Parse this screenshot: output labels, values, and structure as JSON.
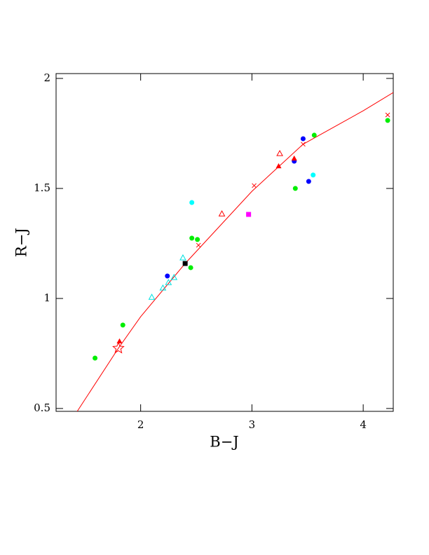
{
  "chart_data": {
    "type": "scatter",
    "x_label": "B−J",
    "y_label": "R−J",
    "xlim": [
      1.24,
      4.27
    ],
    "ylim": [
      0.487,
      2.022
    ],
    "xticks": [
      2,
      3,
      4
    ],
    "yticks": [
      0.5,
      1,
      1.5,
      2
    ],
    "series": [
      {
        "marker": "line",
        "color": "#ff0000",
        "x": [
          1.43,
          1.8,
          2.0,
          2.4,
          3.0,
          3.46,
          4.0,
          4.27
        ],
        "y": [
          0.487,
          0.774,
          0.917,
          1.159,
          1.487,
          1.701,
          1.853,
          1.936
        ]
      },
      {
        "marker": "x",
        "color": "#ff0000",
        "x": [
          2.52,
          3.02,
          3.46,
          4.22
        ],
        "y": [
          1.242,
          1.513,
          1.701,
          1.834
        ]
      },
      {
        "marker": "circle",
        "color": "#00ee00",
        "x": [
          1.59,
          1.84,
          2.46,
          2.51,
          2.45,
          3.39,
          3.56,
          4.22
        ],
        "y": [
          0.729,
          0.879,
          1.274,
          1.268,
          1.14,
          1.5,
          1.742,
          1.809
        ]
      },
      {
        "marker": "circle",
        "color": "#0000ff",
        "x": [
          2.24,
          3.38,
          3.46,
          3.51
        ],
        "y": [
          1.102,
          1.624,
          1.726,
          1.532
        ]
      },
      {
        "marker": "circle",
        "color": "#00ffff",
        "x": [
          2.46,
          3.55
        ],
        "y": [
          1.436,
          1.561
        ]
      },
      {
        "marker": "open-triangle",
        "color": "#00e0e0",
        "x": [
          2.1,
          2.2,
          2.25,
          2.3,
          2.38
        ],
        "y": [
          1.006,
          1.048,
          1.073,
          1.096,
          1.185
        ]
      },
      {
        "marker": "open-triangle",
        "color": "#ff0000",
        "x": [
          2.73,
          3.25
        ],
        "y": [
          1.385,
          1.659
        ]
      },
      {
        "marker": "triangle",
        "color": "#ff0000",
        "x": [
          1.81,
          3.24,
          3.38
        ],
        "y": [
          0.806,
          1.602,
          1.637
        ]
      },
      {
        "marker": "square",
        "color": "#ff00ff",
        "x": [
          2.97
        ],
        "y": [
          1.382
        ]
      },
      {
        "marker": "square",
        "color": "#000000",
        "x": [
          2.4
        ],
        "y": [
          1.159
        ]
      },
      {
        "marker": "star",
        "color": "#ff0000",
        "x": [
          1.8
        ],
        "y": [
          0.774
        ]
      }
    ]
  }
}
